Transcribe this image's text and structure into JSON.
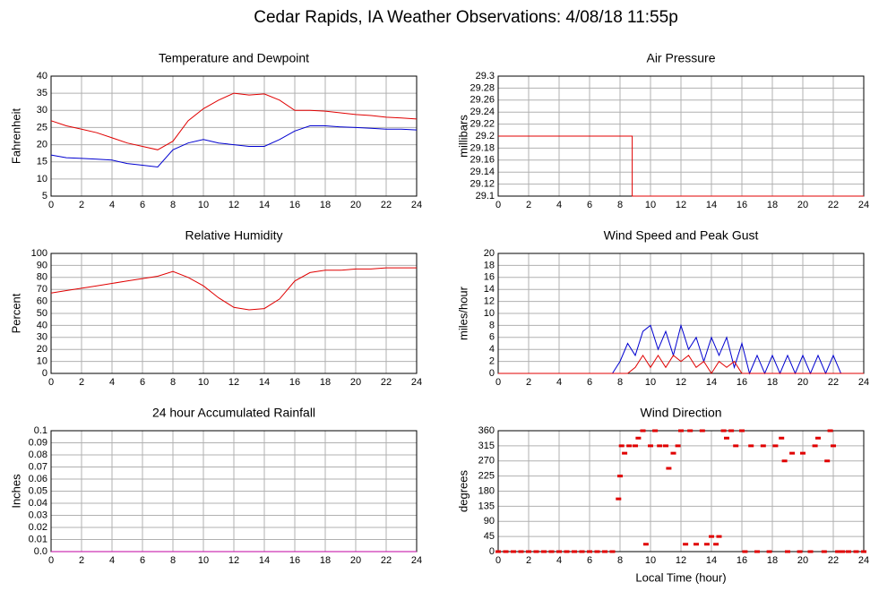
{
  "title": "Cedar Rapids, IA Weather Observations: 4/08/18 11:55p",
  "chart_data": [
    {
      "type": "line",
      "title": "Temperature and Dewpoint",
      "ylabel": "Fahrenheit",
      "x": [
        0,
        1,
        2,
        3,
        4,
        5,
        6,
        7,
        8,
        9,
        10,
        11,
        12,
        13,
        14,
        15,
        16,
        17,
        18,
        19,
        20,
        21,
        22,
        23,
        24
      ],
      "series": [
        {
          "name": "Temperature",
          "color": "#e00000",
          "values": [
            27,
            25.5,
            24.5,
            23.5,
            22,
            20.5,
            19.5,
            18.5,
            21,
            27,
            30.5,
            33,
            35,
            34.5,
            34.8,
            33,
            30,
            30,
            29.8,
            29.3,
            28.8,
            28.5,
            28,
            27.8,
            27.5
          ]
        },
        {
          "name": "Dewpoint",
          "color": "#0000d0",
          "values": [
            17,
            16.2,
            16,
            15.8,
            15.5,
            14.5,
            14,
            13.5,
            18.5,
            20.5,
            21.5,
            20.5,
            20,
            19.5,
            19.5,
            21.5,
            24,
            25.5,
            25.5,
            25.2,
            25,
            24.8,
            24.5,
            24.5,
            24.3
          ]
        }
      ],
      "xlim": [
        0,
        24
      ],
      "xticks": [
        0,
        2,
        4,
        6,
        8,
        10,
        12,
        14,
        16,
        18,
        20,
        22,
        24
      ],
      "ylim": [
        5,
        40
      ],
      "yticks": [
        5,
        10,
        15,
        20,
        25,
        30,
        35,
        40
      ],
      "grid": true
    },
    {
      "type": "line",
      "title": "Air Pressure",
      "ylabel": "millibars",
      "x": [
        0,
        8.8,
        8.8,
        24
      ],
      "series": [
        {
          "name": "Pressure",
          "color": "#e00000",
          "values": [
            29.2,
            29.2,
            29.1,
            29.1
          ]
        }
      ],
      "xlim": [
        0,
        24
      ],
      "xticks": [
        0,
        2,
        4,
        6,
        8,
        10,
        12,
        14,
        16,
        18,
        20,
        22,
        24
      ],
      "ylim": [
        29.1,
        29.3
      ],
      "yticks": [
        29.1,
        29.12,
        29.14,
        29.16,
        29.18,
        29.2,
        29.22,
        29.24,
        29.26,
        29.28,
        29.3
      ],
      "grid": true
    },
    {
      "type": "line",
      "title": "Relative Humidity",
      "ylabel": "Percent",
      "x": [
        0,
        1,
        2,
        3,
        4,
        5,
        6,
        7,
        8,
        9,
        10,
        11,
        12,
        13,
        14,
        15,
        16,
        17,
        18,
        19,
        20,
        21,
        22,
        23,
        24
      ],
      "series": [
        {
          "name": "Humidity",
          "color": "#e00000",
          "values": [
            67,
            69,
            71,
            73,
            75,
            77,
            79,
            81,
            85,
            80,
            73,
            63,
            55,
            53,
            54,
            62,
            77,
            84,
            86,
            86,
            87,
            87,
            88,
            88,
            88
          ]
        }
      ],
      "xlim": [
        0,
        24
      ],
      "xticks": [
        0,
        2,
        4,
        6,
        8,
        10,
        12,
        14,
        16,
        18,
        20,
        22,
        24
      ],
      "ylim": [
        0,
        100
      ],
      "yticks": [
        0,
        10,
        20,
        30,
        40,
        50,
        60,
        70,
        80,
        90,
        100
      ],
      "grid": true
    },
    {
      "type": "line",
      "title": "Wind Speed and Peak Gust",
      "ylabel": "miles/hour",
      "x": [
        0,
        0.5,
        1,
        1.5,
        2,
        2.5,
        3,
        3.5,
        4,
        4.5,
        5,
        5.5,
        6,
        6.5,
        7,
        7.5,
        8,
        8.5,
        9,
        9.5,
        10,
        10.5,
        11,
        11.5,
        12,
        12.5,
        13,
        13.5,
        14,
        14.5,
        15,
        15.5,
        16,
        16.5,
        17,
        17.5,
        18,
        18.5,
        19,
        19.5,
        20,
        20.5,
        21,
        21.5,
        22,
        22.5,
        23,
        23.5,
        24
      ],
      "series": [
        {
          "name": "Peak Gust",
          "color": "#0000d0",
          "values": [
            0,
            0,
            0,
            0,
            0,
            0,
            0,
            0,
            0,
            0,
            0,
            0,
            0,
            0,
            0,
            0,
            2,
            5,
            3,
            7,
            8,
            4,
            7,
            3,
            8,
            4,
            6,
            2,
            6,
            3,
            6,
            1,
            5,
            0,
            3,
            0,
            3,
            0,
            3,
            0,
            3,
            0,
            3,
            0,
            3,
            0,
            0,
            0,
            0
          ]
        },
        {
          "name": "Wind Speed",
          "color": "#e00000",
          "values": [
            0,
            0,
            0,
            0,
            0,
            0,
            0,
            0,
            0,
            0,
            0,
            0,
            0,
            0,
            0,
            0,
            0,
            0,
            1,
            3,
            1,
            3,
            1,
            3,
            2,
            3,
            1,
            2,
            0,
            2,
            1,
            2,
            0,
            0,
            0,
            0,
            0,
            0,
            0,
            0,
            0,
            0,
            0,
            0,
            0,
            0,
            0,
            0,
            0
          ]
        }
      ],
      "xlim": [
        0,
        24
      ],
      "xticks": [
        0,
        2,
        4,
        6,
        8,
        10,
        12,
        14,
        16,
        18,
        20,
        22,
        24
      ],
      "ylim": [
        0,
        20
      ],
      "yticks": [
        0,
        2,
        4,
        6,
        8,
        10,
        12,
        14,
        16,
        18,
        20
      ],
      "grid": true
    },
    {
      "type": "line",
      "title": "24 hour Accumulated Rainfall",
      "ylabel": "Inches",
      "x": [
        0,
        24
      ],
      "series": [
        {
          "name": "Rainfall",
          "color": "#c000a0",
          "values": [
            0,
            0
          ]
        }
      ],
      "xlim": [
        0,
        24
      ],
      "xticks": [
        0,
        2,
        4,
        6,
        8,
        10,
        12,
        14,
        16,
        18,
        20,
        22,
        24
      ],
      "ylim": [
        0,
        0.1
      ],
      "yticks": [
        {
          "value": 0,
          "label": "0.0"
        },
        0.01,
        0.02,
        0.03,
        0.04,
        0.05,
        0.06,
        0.07,
        0.08,
        0.09,
        0.1
      ],
      "grid": true
    },
    {
      "type": "scatter",
      "title": "Wind Direction",
      "ylabel": "degrees",
      "xlabel": "Local Time (hour)",
      "color": "#e00000",
      "x": [
        0,
        0.5,
        1,
        1.5,
        2,
        2.5,
        3,
        3.5,
        4,
        4.5,
        5,
        5.5,
        6,
        6.5,
        7,
        7.5,
        7.9,
        8,
        8.1,
        8.3,
        8.6,
        9,
        9.2,
        9.5,
        9.7,
        10,
        10.3,
        10.6,
        11,
        11.2,
        11.5,
        11.8,
        12,
        12.3,
        12.6,
        13,
        13.4,
        13.7,
        14,
        14.3,
        14.5,
        14.8,
        15,
        15.3,
        15.6,
        16,
        16.2,
        16.6,
        17,
        17.4,
        17.8,
        18.2,
        18.6,
        18.8,
        19,
        19.3,
        19.8,
        20,
        20.5,
        20.8,
        21,
        21.4,
        21.6,
        21.8,
        22,
        22.3,
        22.6,
        23,
        23.5,
        24
      ],
      "values": [
        0,
        0,
        0,
        0,
        0,
        0,
        0,
        0,
        0,
        0,
        0,
        0,
        0,
        0,
        0,
        0,
        157,
        225,
        315,
        293,
        315,
        315,
        338,
        360,
        22,
        315,
        360,
        315,
        315,
        248,
        293,
        315,
        360,
        22,
        360,
        22,
        360,
        22,
        45,
        22,
        45,
        360,
        338,
        360,
        315,
        360,
        0,
        315,
        0,
        315,
        0,
        315,
        338,
        270,
        0,
        293,
        0,
        293,
        0,
        315,
        338,
        0,
        270,
        360,
        315,
        0,
        0,
        0,
        0,
        0
      ],
      "xlim": [
        0,
        24
      ],
      "xticks": [
        0,
        2,
        4,
        6,
        8,
        10,
        12,
        14,
        16,
        18,
        20,
        22,
        24
      ],
      "ylim": [
        0,
        360
      ],
      "yticks": [
        0,
        45,
        90,
        135,
        180,
        225,
        270,
        315,
        360
      ],
      "grid": true
    }
  ]
}
